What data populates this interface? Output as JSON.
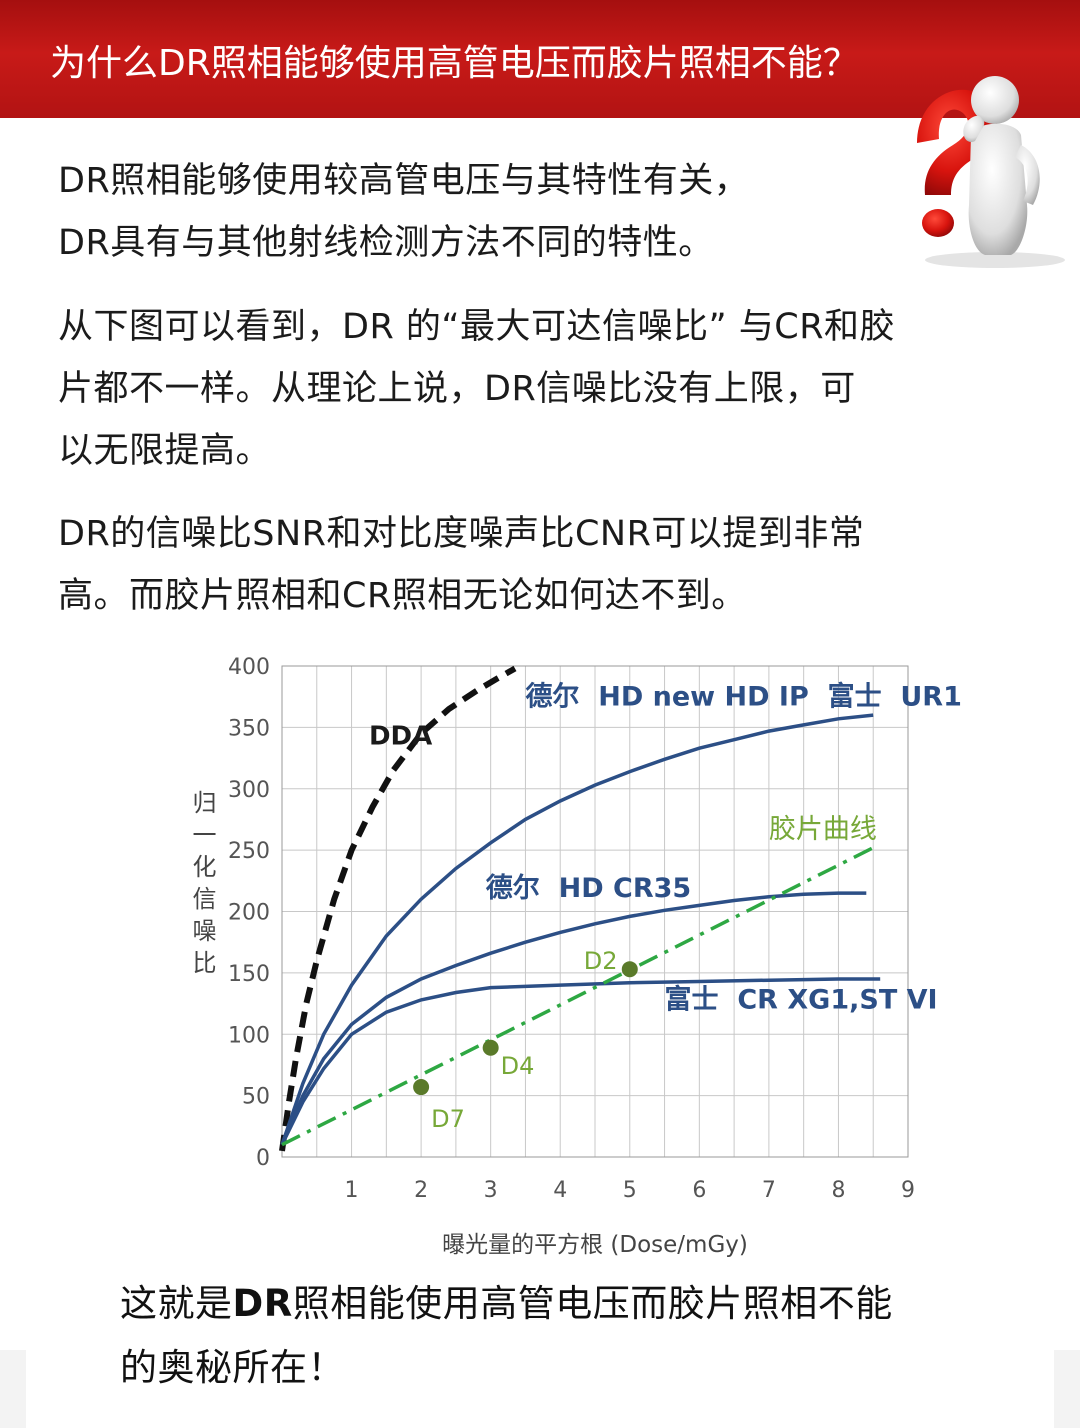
{
  "header": {
    "title": "为什么DR照相能够使用高管电压而胶片照相不能？"
  },
  "paragraphs": {
    "p1": [
      "DR照相能够使用较高管电压与其特性有关，",
      "DR具有与其他射线检测方法不同的特性。"
    ],
    "p2": [
      "从下图可以看到，DR 的“最大可达信噪比” 与CR和胶",
      "片都不一样。从理论上说，DR信噪比没有上限，可",
      "以无限提高。"
    ],
    "p3": [
      "DR的信噪比SNR和对比度噪声比CNR可以提到非常",
      "高。而胶片照相和CR照相无论如何达不到。"
    ]
  },
  "closing": {
    "line1_prefix": "这就是",
    "line1_bold": "DR",
    "line1_rest": "照相能使用高管电压而胶片照相不能",
    "line2": "的奥秘所在！"
  },
  "colors": {
    "header_red": "#b51414",
    "curve_blue": "#2c4f86",
    "film_green": "#2ea843",
    "label_green": "#77a838",
    "dot_green": "#5a7a2a",
    "dda_black": "#111111",
    "grid": "#c8c8c8"
  },
  "icons": {
    "decoration": "question-mark-figure-icon"
  },
  "chart_data": {
    "type": "line",
    "title": "",
    "xlabel": "曝光量的平方根 (Dose/mGy)",
    "ylabel": "归一化信噪比",
    "xlim": [
      0,
      9
    ],
    "ylim": [
      0,
      400
    ],
    "xticks": [
      "1",
      "2",
      "3",
      "4",
      "5",
      "6",
      "7",
      "8",
      "9"
    ],
    "yticks": [
      "0",
      "50",
      "100",
      "150",
      "200",
      "250",
      "300",
      "350",
      "400"
    ],
    "grid": true,
    "series": [
      {
        "name": "DDA",
        "style": "dashed",
        "color": "#111111",
        "x": [
          0,
          0.1,
          0.2,
          0.35,
          0.5,
          0.75,
          1.0,
          1.3,
          1.6,
          2.0,
          2.4,
          2.8,
          3.1,
          3.35
        ],
        "y": [
          5,
          45,
          80,
          125,
          160,
          210,
          250,
          285,
          315,
          345,
          365,
          380,
          390,
          398
        ]
      },
      {
        "name": "德尔  HD new HD IP  富士  UR1",
        "style": "solid",
        "color": "#2c4f86",
        "x": [
          0,
          0.3,
          0.6,
          1.0,
          1.5,
          2.0,
          2.5,
          3.0,
          3.5,
          4.0,
          4.5,
          5.0,
          5.5,
          6.0,
          6.5,
          7.0,
          7.5,
          8.0,
          8.5
        ],
        "y": [
          10,
          60,
          100,
          140,
          180,
          210,
          235,
          256,
          275,
          290,
          303,
          314,
          324,
          333,
          340,
          347,
          352,
          357,
          360
        ]
      },
      {
        "name": "德尔  HD CR35",
        "style": "solid",
        "color": "#2c4f86",
        "x": [
          0,
          0.3,
          0.6,
          1.0,
          1.5,
          2.0,
          2.5,
          3.0,
          3.5,
          4.0,
          4.5,
          5.0,
          5.5,
          6.0,
          6.5,
          7.0,
          7.5,
          8.0,
          8.4
        ],
        "y": [
          10,
          50,
          80,
          108,
          130,
          145,
          156,
          166,
          175,
          183,
          190,
          196,
          201,
          205,
          209,
          212,
          214,
          215,
          215
        ]
      },
      {
        "name": "富士  CR XG1,ST VI",
        "style": "solid",
        "color": "#2c4f86",
        "x": [
          0,
          0.3,
          0.6,
          1.0,
          1.5,
          2.0,
          2.5,
          3.0,
          4.0,
          5.0,
          6.0,
          7.0,
          8.0,
          8.6
        ],
        "y": [
          10,
          45,
          72,
          100,
          118,
          128,
          134,
          138,
          140,
          142,
          143,
          144,
          145,
          145
        ]
      },
      {
        "name": "胶片曲线",
        "style": "dashdot",
        "color": "#2ea843",
        "x": [
          0,
          8.5
        ],
        "y": [
          10,
          252
        ]
      }
    ],
    "points": [
      {
        "label": "D7",
        "x": 2.0,
        "y": 57
      },
      {
        "label": "D4",
        "x": 3.0,
        "y": 89
      },
      {
        "label": "D2",
        "x": 5.0,
        "y": 153
      }
    ]
  }
}
